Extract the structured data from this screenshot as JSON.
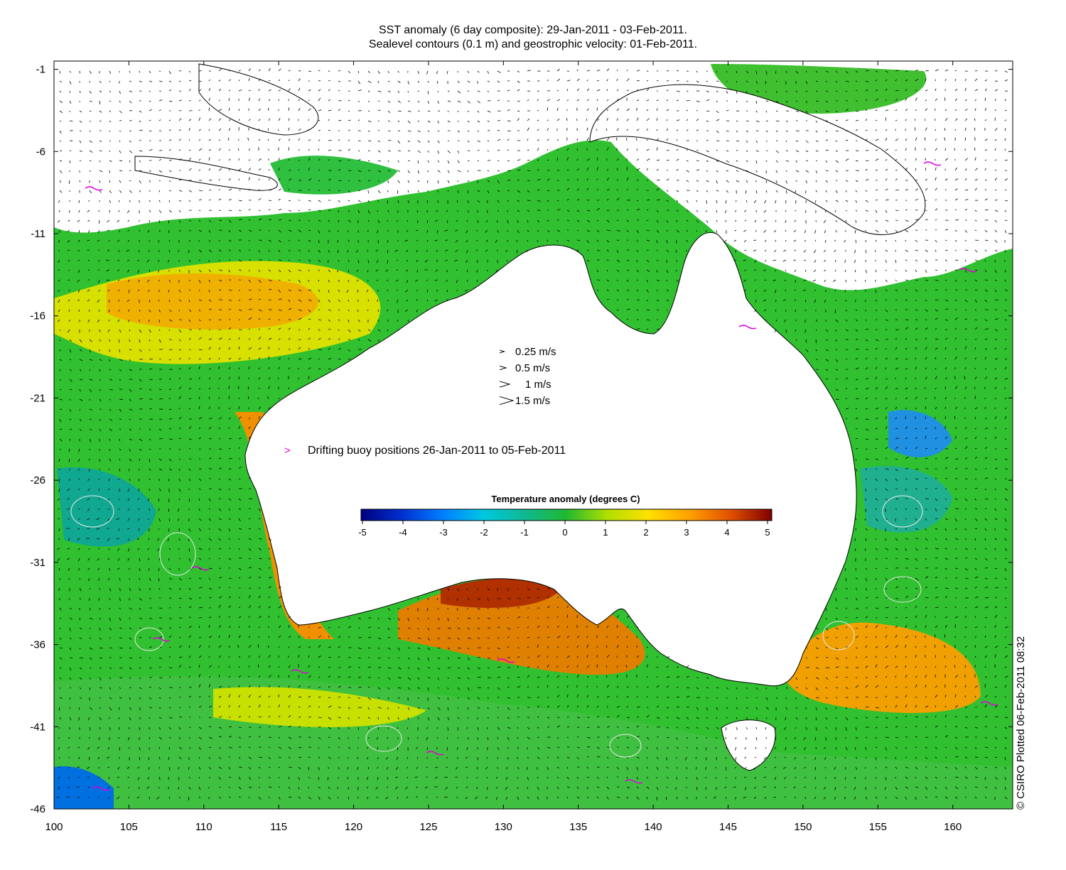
{
  "title": {
    "line1": "SST anomaly (6 day composite): 29-Jan-2011 - 03-Feb-2011.",
    "line2": "Sealevel contours (0.1 m) and geostrophic velocity: 01-Feb-2011."
  },
  "axes": {
    "x_ticks": [
      "100",
      "105",
      "110",
      "115",
      "120",
      "125",
      "130",
      "135",
      "140",
      "145",
      "150",
      "155",
      "160"
    ],
    "y_ticks": [
      "-1",
      "-6",
      "-11",
      "-16",
      "-21",
      "-26",
      "-31",
      "-36",
      "-41",
      "-46"
    ],
    "x_range": [
      100,
      164
    ],
    "y_range": [
      -46,
      -0.5
    ]
  },
  "velocity_legend": [
    {
      "label": "0.25 m/s",
      "speed": 0.25
    },
    {
      "label": "0.5 m/s",
      "speed": 0.5
    },
    {
      "label": "1 m/s",
      "speed": 1
    },
    {
      "label": "1.5 m/s",
      "speed": 1.5
    }
  ],
  "buoy_legend": {
    "label": "Drifting buoy positions 26-Jan-2011 to 05-Feb-2011",
    "color": "#e000e0"
  },
  "colorbar": {
    "title": "Temperature anomaly (degrees C)",
    "ticks": [
      "-5",
      "-4",
      "-3",
      "-2",
      "-1",
      "0",
      "1",
      "2",
      "3",
      "4",
      "5"
    ],
    "range": [
      -5,
      5
    ]
  },
  "credit": "© CSIRO Plotted 06-Feb-2011 08:32",
  "colors": {
    "cold_extreme": "#00007f",
    "neutral": "#22c028",
    "warm_extreme": "#7f0000",
    "land": "#ffffff",
    "no_data": "#ffffff"
  }
}
